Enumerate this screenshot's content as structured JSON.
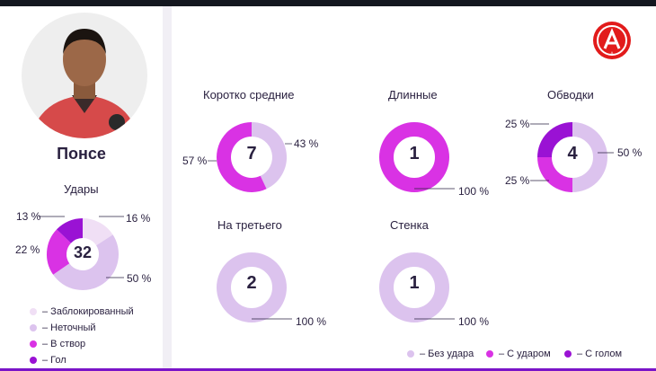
{
  "colors": {
    "accent": "#7a14c8",
    "no_shot": "#dcc3ee",
    "with_shot": "#d932e4",
    "with_goal": "#9a12d4",
    "blocked": "#f0dff5",
    "inaccurate": "#dcc3ee",
    "on_target": "#d932e4",
    "goal": "#9a12d4"
  },
  "player": {
    "name": "Понсе"
  },
  "shots": {
    "title": "Удары",
    "total": "32",
    "labels": {
      "blocked": "16 %",
      "inaccurate": "50 %",
      "on_target": "22 %",
      "goal": "13 %"
    },
    "legend": [
      "– Заблокированный",
      "– Неточный",
      "– В створ",
      "– Гол"
    ]
  },
  "passes": {
    "short_medium": {
      "title": "Коротко средние",
      "total": "7",
      "label_with_shot": "57 %",
      "label_no_shot": "43 %"
    },
    "long": {
      "title": "Длинные",
      "total": "1",
      "label_with_shot": "100 %"
    },
    "dribbles": {
      "title": "Обводки",
      "total": "4",
      "label_no_shot": "50 %",
      "label_with_goal": "25 %",
      "label_with_shot": "25 %"
    },
    "third": {
      "title": "На третьего",
      "total": "2",
      "label_no_shot": "100 %"
    },
    "wall": {
      "title": "Стенка",
      "total": "1",
      "label_no_shot": "100 %"
    }
  },
  "legend": {
    "no_shot": "– Без удара",
    "with_shot": "– С ударом",
    "with_goal": "– С голом"
  },
  "logo": {
    "letter": "А"
  }
}
